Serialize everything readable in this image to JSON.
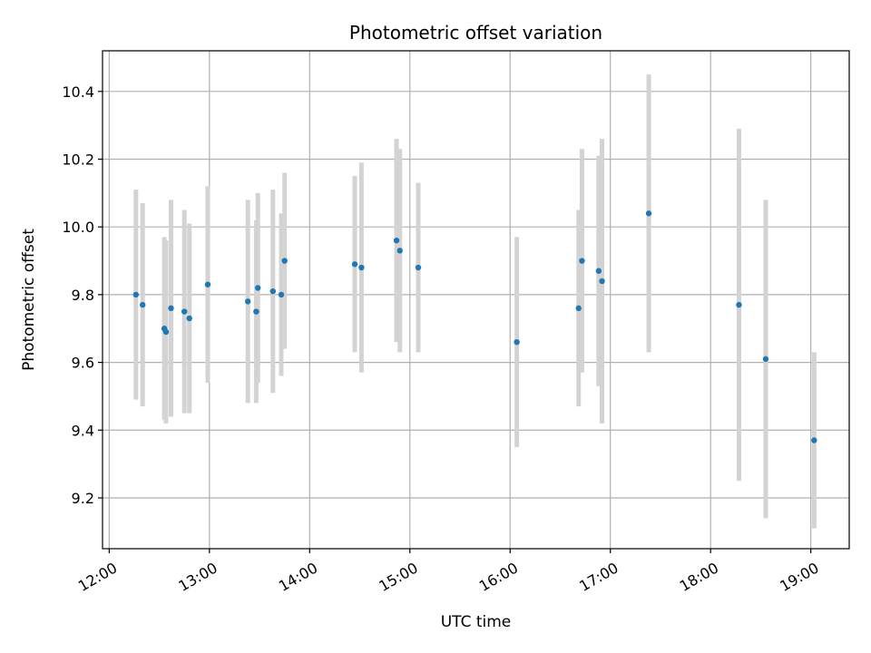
{
  "chart_data": {
    "type": "scatter",
    "title": "Photometric offset variation",
    "xlabel": "UTC time",
    "ylabel": "Photometric offset",
    "x_ticks": [
      "12:00",
      "13:00",
      "14:00",
      "15:00",
      "16:00",
      "17:00",
      "18:00",
      "19:00"
    ],
    "y_ticks": [
      "9.2",
      "9.4",
      "9.6",
      "9.8",
      "10.0",
      "10.2",
      "10.4"
    ],
    "xlim": [
      "11:56",
      "19:23"
    ],
    "ylim": [
      9.05,
      10.52
    ],
    "grid": true,
    "marker_color": "#1f77b4",
    "errorbar_color": "#d3d3d3",
    "points": [
      {
        "t": "12:16",
        "y": 9.8,
        "err": 0.31
      },
      {
        "t": "12:20",
        "y": 9.77,
        "err": 0.3
      },
      {
        "t": "12:33",
        "y": 9.7,
        "err": 0.27
      },
      {
        "t": "12:34",
        "y": 9.69,
        "err": 0.27
      },
      {
        "t": "12:37",
        "y": 9.76,
        "err": 0.32
      },
      {
        "t": "12:45",
        "y": 9.75,
        "err": 0.3
      },
      {
        "t": "12:48",
        "y": 9.73,
        "err": 0.28
      },
      {
        "t": "12:59",
        "y": 9.83,
        "err": 0.29
      },
      {
        "t": "13:23",
        "y": 9.78,
        "err": 0.3
      },
      {
        "t": "13:28",
        "y": 9.75,
        "err": 0.27
      },
      {
        "t": "13:29",
        "y": 9.82,
        "err": 0.28
      },
      {
        "t": "13:38",
        "y": 9.81,
        "err": 0.3
      },
      {
        "t": "13:43",
        "y": 9.8,
        "err": 0.24
      },
      {
        "t": "13:45",
        "y": 9.9,
        "err": 0.26
      },
      {
        "t": "14:27",
        "y": 9.89,
        "err": 0.26
      },
      {
        "t": "14:31",
        "y": 9.88,
        "err": 0.31
      },
      {
        "t": "14:52",
        "y": 9.96,
        "err": 0.3
      },
      {
        "t": "14:54",
        "y": 9.93,
        "err": 0.3
      },
      {
        "t": "15:05",
        "y": 9.88,
        "err": 0.25
      },
      {
        "t": "16:04",
        "y": 9.66,
        "err": 0.31
      },
      {
        "t": "16:41",
        "y": 9.76,
        "err": 0.29
      },
      {
        "t": "16:43",
        "y": 9.9,
        "err": 0.33
      },
      {
        "t": "16:53",
        "y": 9.87,
        "err": 0.34
      },
      {
        "t": "16:55",
        "y": 9.84,
        "err": 0.42
      },
      {
        "t": "17:23",
        "y": 10.04,
        "err": 0.41
      },
      {
        "t": "18:17",
        "y": 9.77,
        "err": 0.52
      },
      {
        "t": "18:33",
        "y": 9.61,
        "err": 0.47
      },
      {
        "t": "19:02",
        "y": 9.37,
        "err": 0.26
      }
    ]
  }
}
